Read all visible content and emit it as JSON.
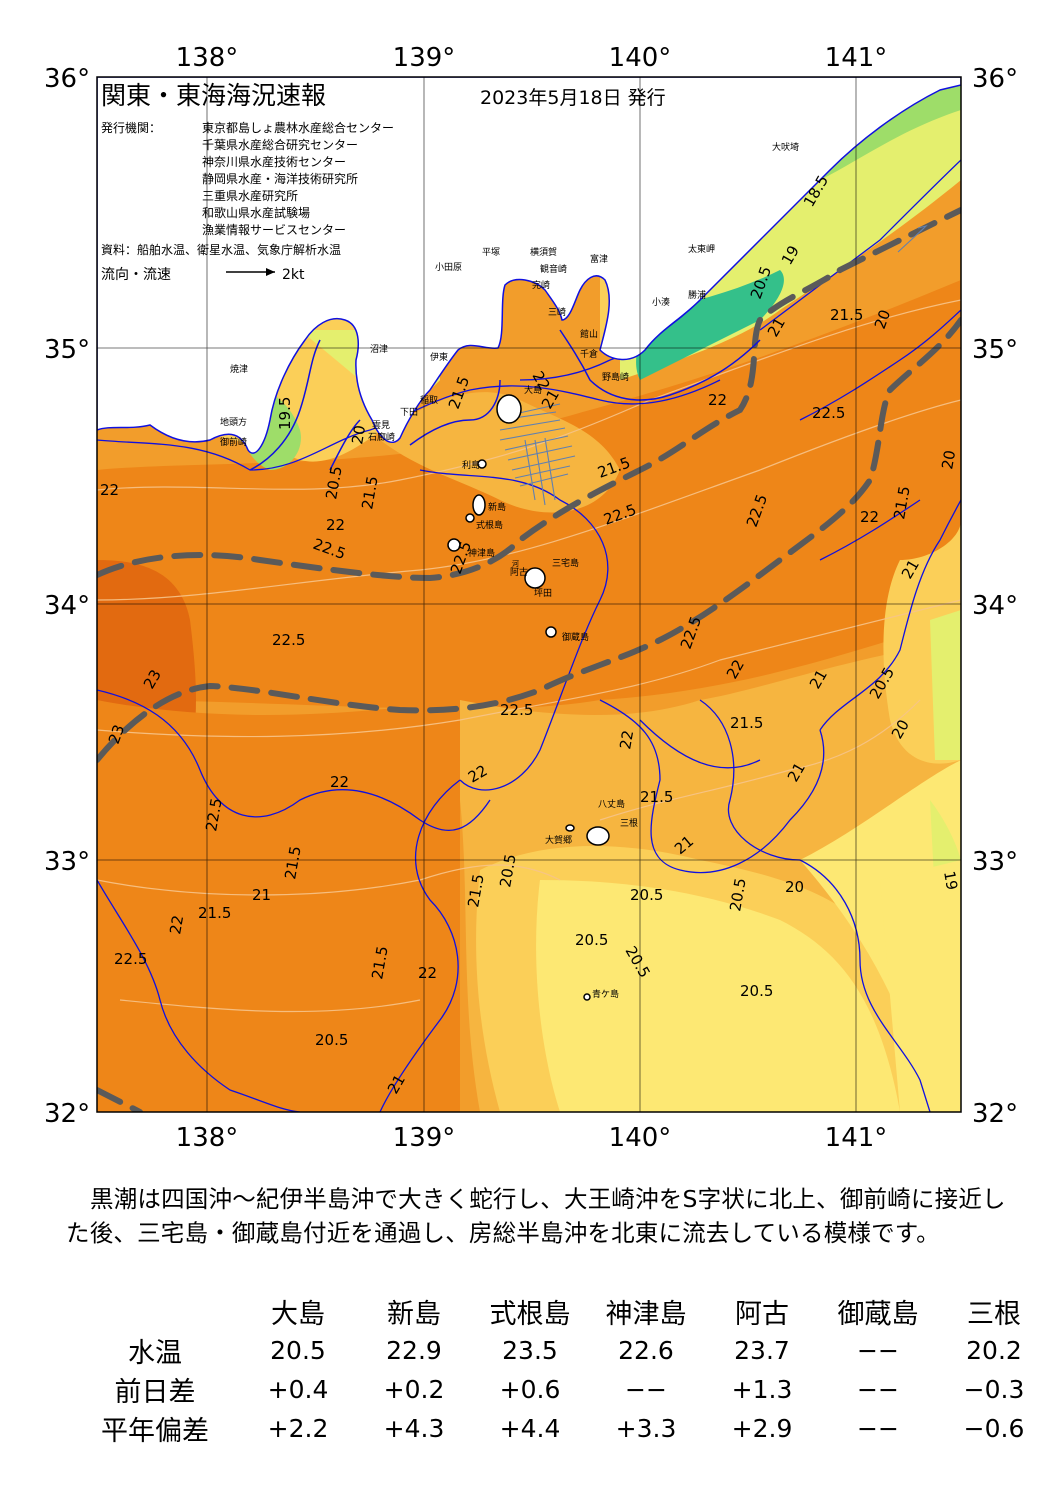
{
  "header": {
    "title": "関東・東海海況速報",
    "issued": "2023年5月18日 発行",
    "publisher_label": "発行機関：",
    "publishers": [
      "東京都島しょ農林水産総合センター",
      "千葉県水産総合研究センター",
      "神奈川県水産技術センター",
      "静岡県水産・海洋技術研究所",
      "三重県水産研究所",
      "和歌山県水産試験場",
      "漁業情報サービスセンター"
    ],
    "sources": "資料：船舶水温、衛星水温、気象庁解析水温",
    "flow_label": "流向・流速",
    "flow_scale": "2kt"
  },
  "axes": {
    "lon_ticks": [
      "138°",
      "139°",
      "140°",
      "141°"
    ],
    "lat_ticks": [
      "36°",
      "35°",
      "34°",
      "33°",
      "32°"
    ]
  },
  "place_names": [
    "大島",
    "利島",
    "新島",
    "式根島",
    "神津島",
    "三宅島",
    "御蔵島",
    "八丈島",
    "三根",
    "大賀郷",
    "青ケ島",
    "阿古",
    "坪田",
    "河",
    "焼津",
    "御前崎",
    "地頭方",
    "石廊崎",
    "下田",
    "稲取",
    "伊東",
    "小田原",
    "平塚",
    "横須賀",
    "観音崎",
    "富津",
    "館山",
    "千倉",
    "野島崎",
    "勝浦",
    "小湊",
    "太東岬",
    "大吠埼",
    "沼津",
    "雲見",
    "三崎",
    "完崎"
  ],
  "isotherm_labels": [
    "18.5",
    "19",
    "19.5",
    "20",
    "20.5",
    "21",
    "21.5",
    "22",
    "22.5",
    "23"
  ],
  "colors": {
    "t23": "#e26a10",
    "t225": "#ee8618",
    "t22": "#f29d2b",
    "t215": "#f6b540",
    "t21": "#fbcf58",
    "t205": "#fde873",
    "t20": "#e4ef6e",
    "t195": "#9edd69",
    "t19": "#59cc72",
    "t185": "#34c08a",
    "land": "#ffffff",
    "kuroshio_axis": "#5a5a5a",
    "depth_contour": "#1010e0"
  },
  "summary": "黒潮は四国沖～紀伊半島沖で大きく蛇行し、大王崎沖をS字状に北上、御前崎に接近した後、三宅島・御蔵島付近を通過し、房総半島沖を北東に流去している模様です。",
  "table": {
    "headers": [
      "大島",
      "新島",
      "式根島",
      "神津島",
      "阿古",
      "御蔵島",
      "三根"
    ],
    "rows": [
      {
        "label": "水温",
        "values": [
          "20.5",
          "22.9",
          "23.5",
          "22.6",
          "23.7",
          "−−",
          "20.2"
        ]
      },
      {
        "label": "前日差",
        "values": [
          "+0.4",
          "+0.2",
          "+0.6",
          "−−",
          "+1.3",
          "−−",
          "−0.3"
        ]
      },
      {
        "label": "平年偏差",
        "values": [
          "+2.2",
          "+4.3",
          "+4.4",
          "+3.3",
          "+2.9",
          "−−",
          "−0.6"
        ]
      }
    ]
  }
}
